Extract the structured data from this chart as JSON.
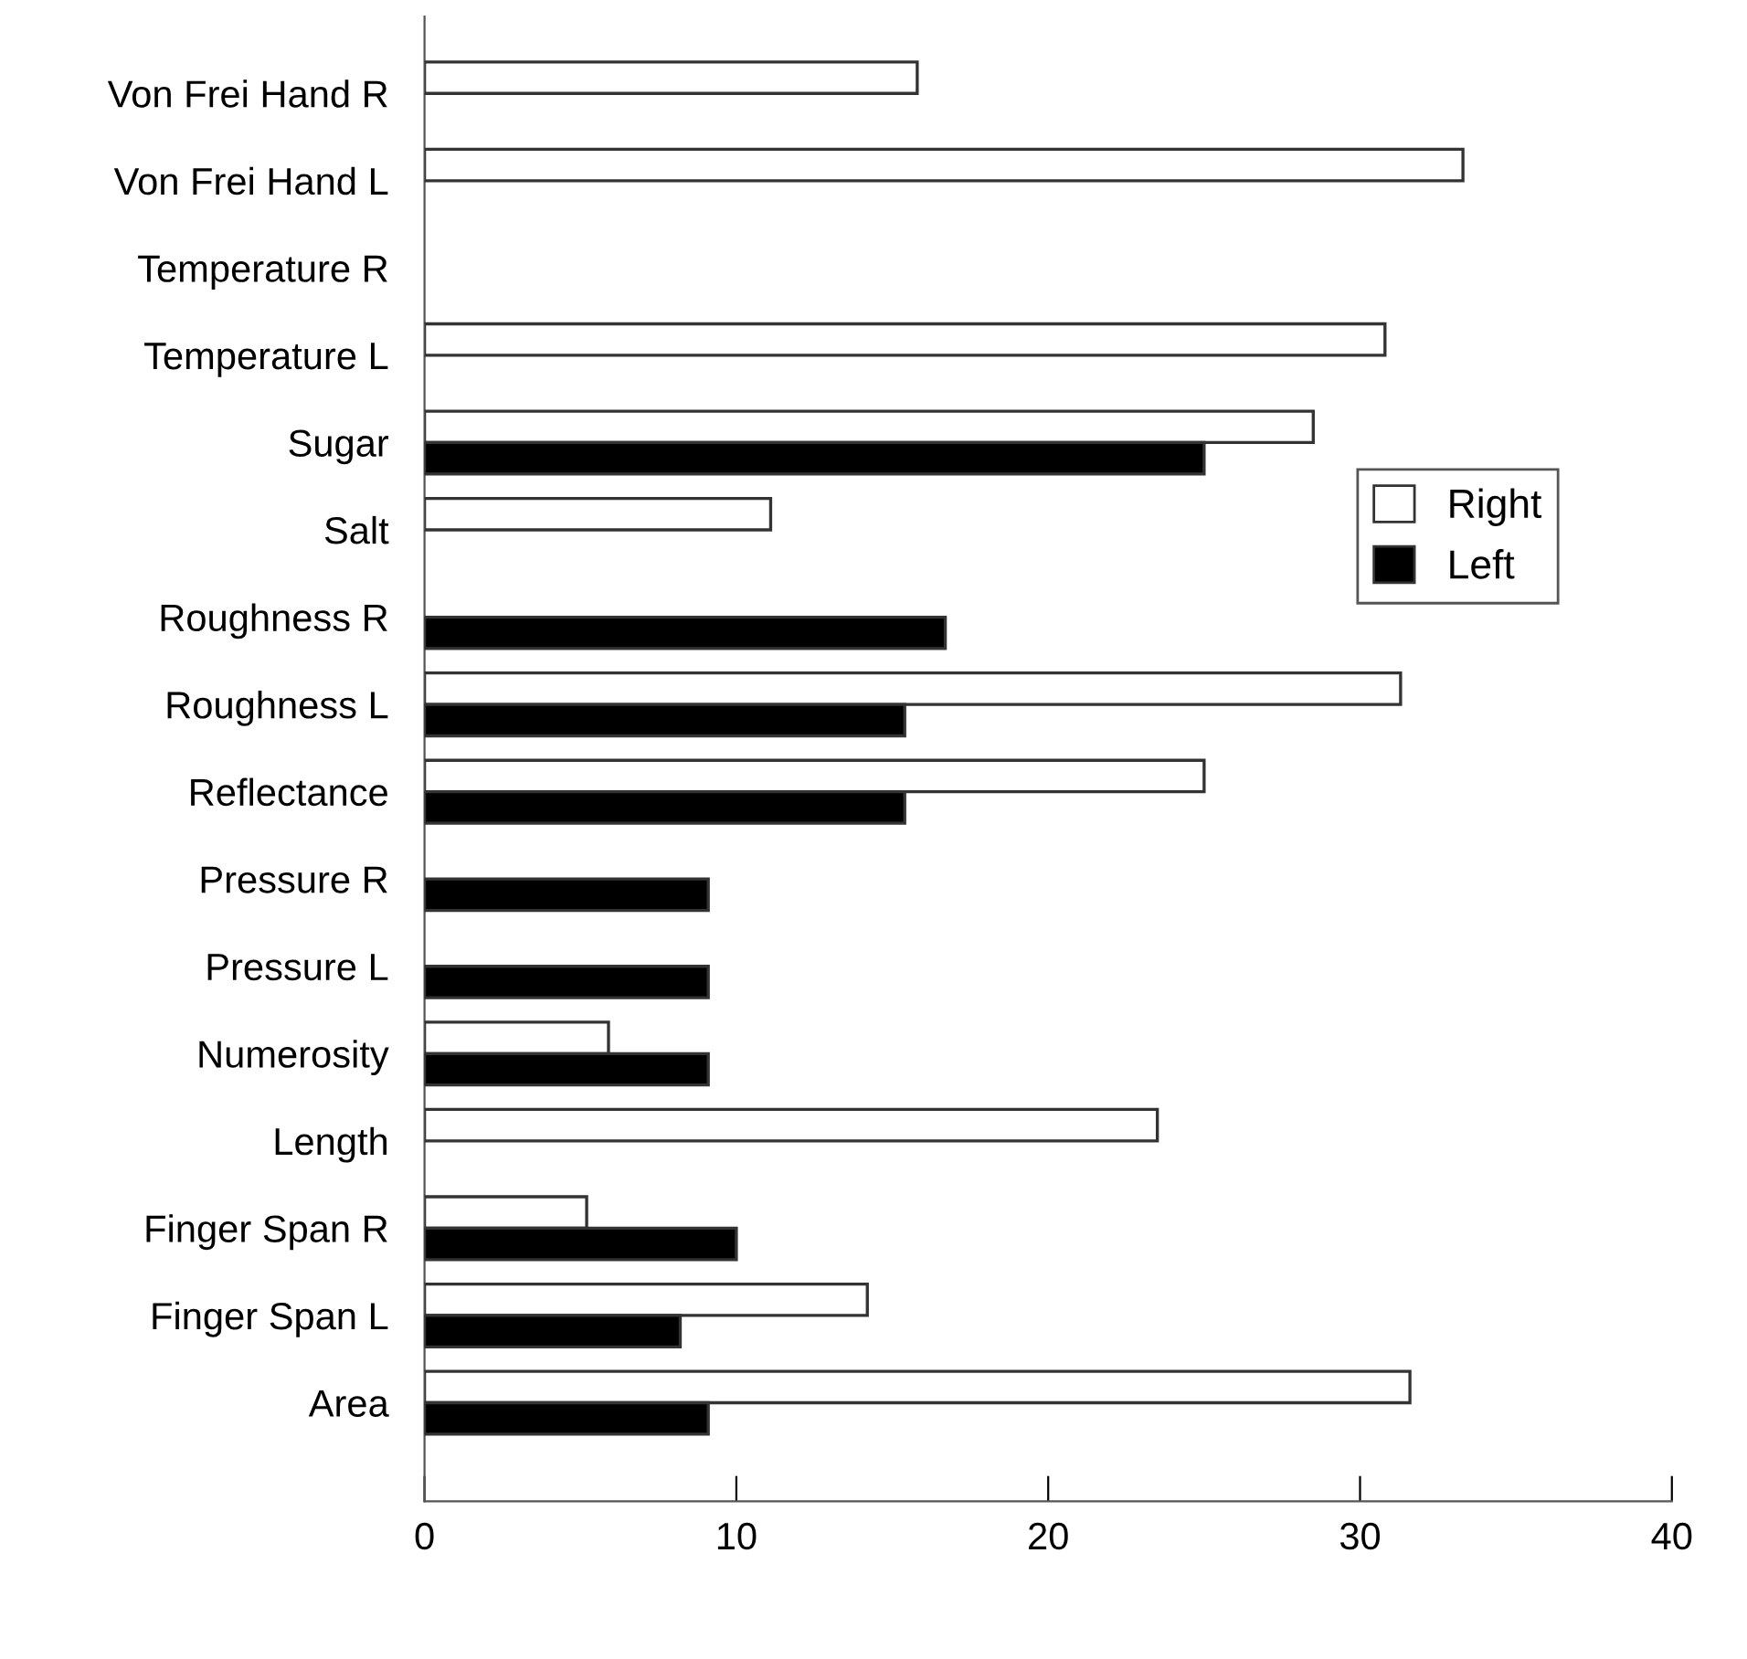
{
  "chart_data": {
    "type": "bar",
    "orientation": "horizontal",
    "categories": [
      "Von Frei Hand R",
      "Von Frei Hand L",
      "Temperature R",
      "Temperature L",
      "Sugar",
      "Salt",
      "Roughness R",
      "Roughness L",
      "Reflectance",
      "Pressure R",
      "Pressure L",
      "Numerosity",
      "Length",
      "Finger Span R",
      "Finger Span L",
      "Area"
    ],
    "series": [
      {
        "name": "Right",
        "color": "#ffffff",
        "values": [
          15.8,
          33.3,
          null,
          30.8,
          28.5,
          11.1,
          null,
          31.3,
          25.0,
          null,
          null,
          5.9,
          23.5,
          5.2,
          14.2,
          31.6
        ]
      },
      {
        "name": "Left",
        "color": "#000000",
        "values": [
          null,
          null,
          null,
          null,
          25.0,
          null,
          16.7,
          15.4,
          15.4,
          9.1,
          9.1,
          9.1,
          null,
          10.0,
          8.2,
          9.1
        ]
      }
    ],
    "xlim": [
      0,
      40
    ],
    "xticks": [
      0,
      10,
      20,
      30,
      40
    ],
    "grid": false,
    "legend": "right"
  }
}
